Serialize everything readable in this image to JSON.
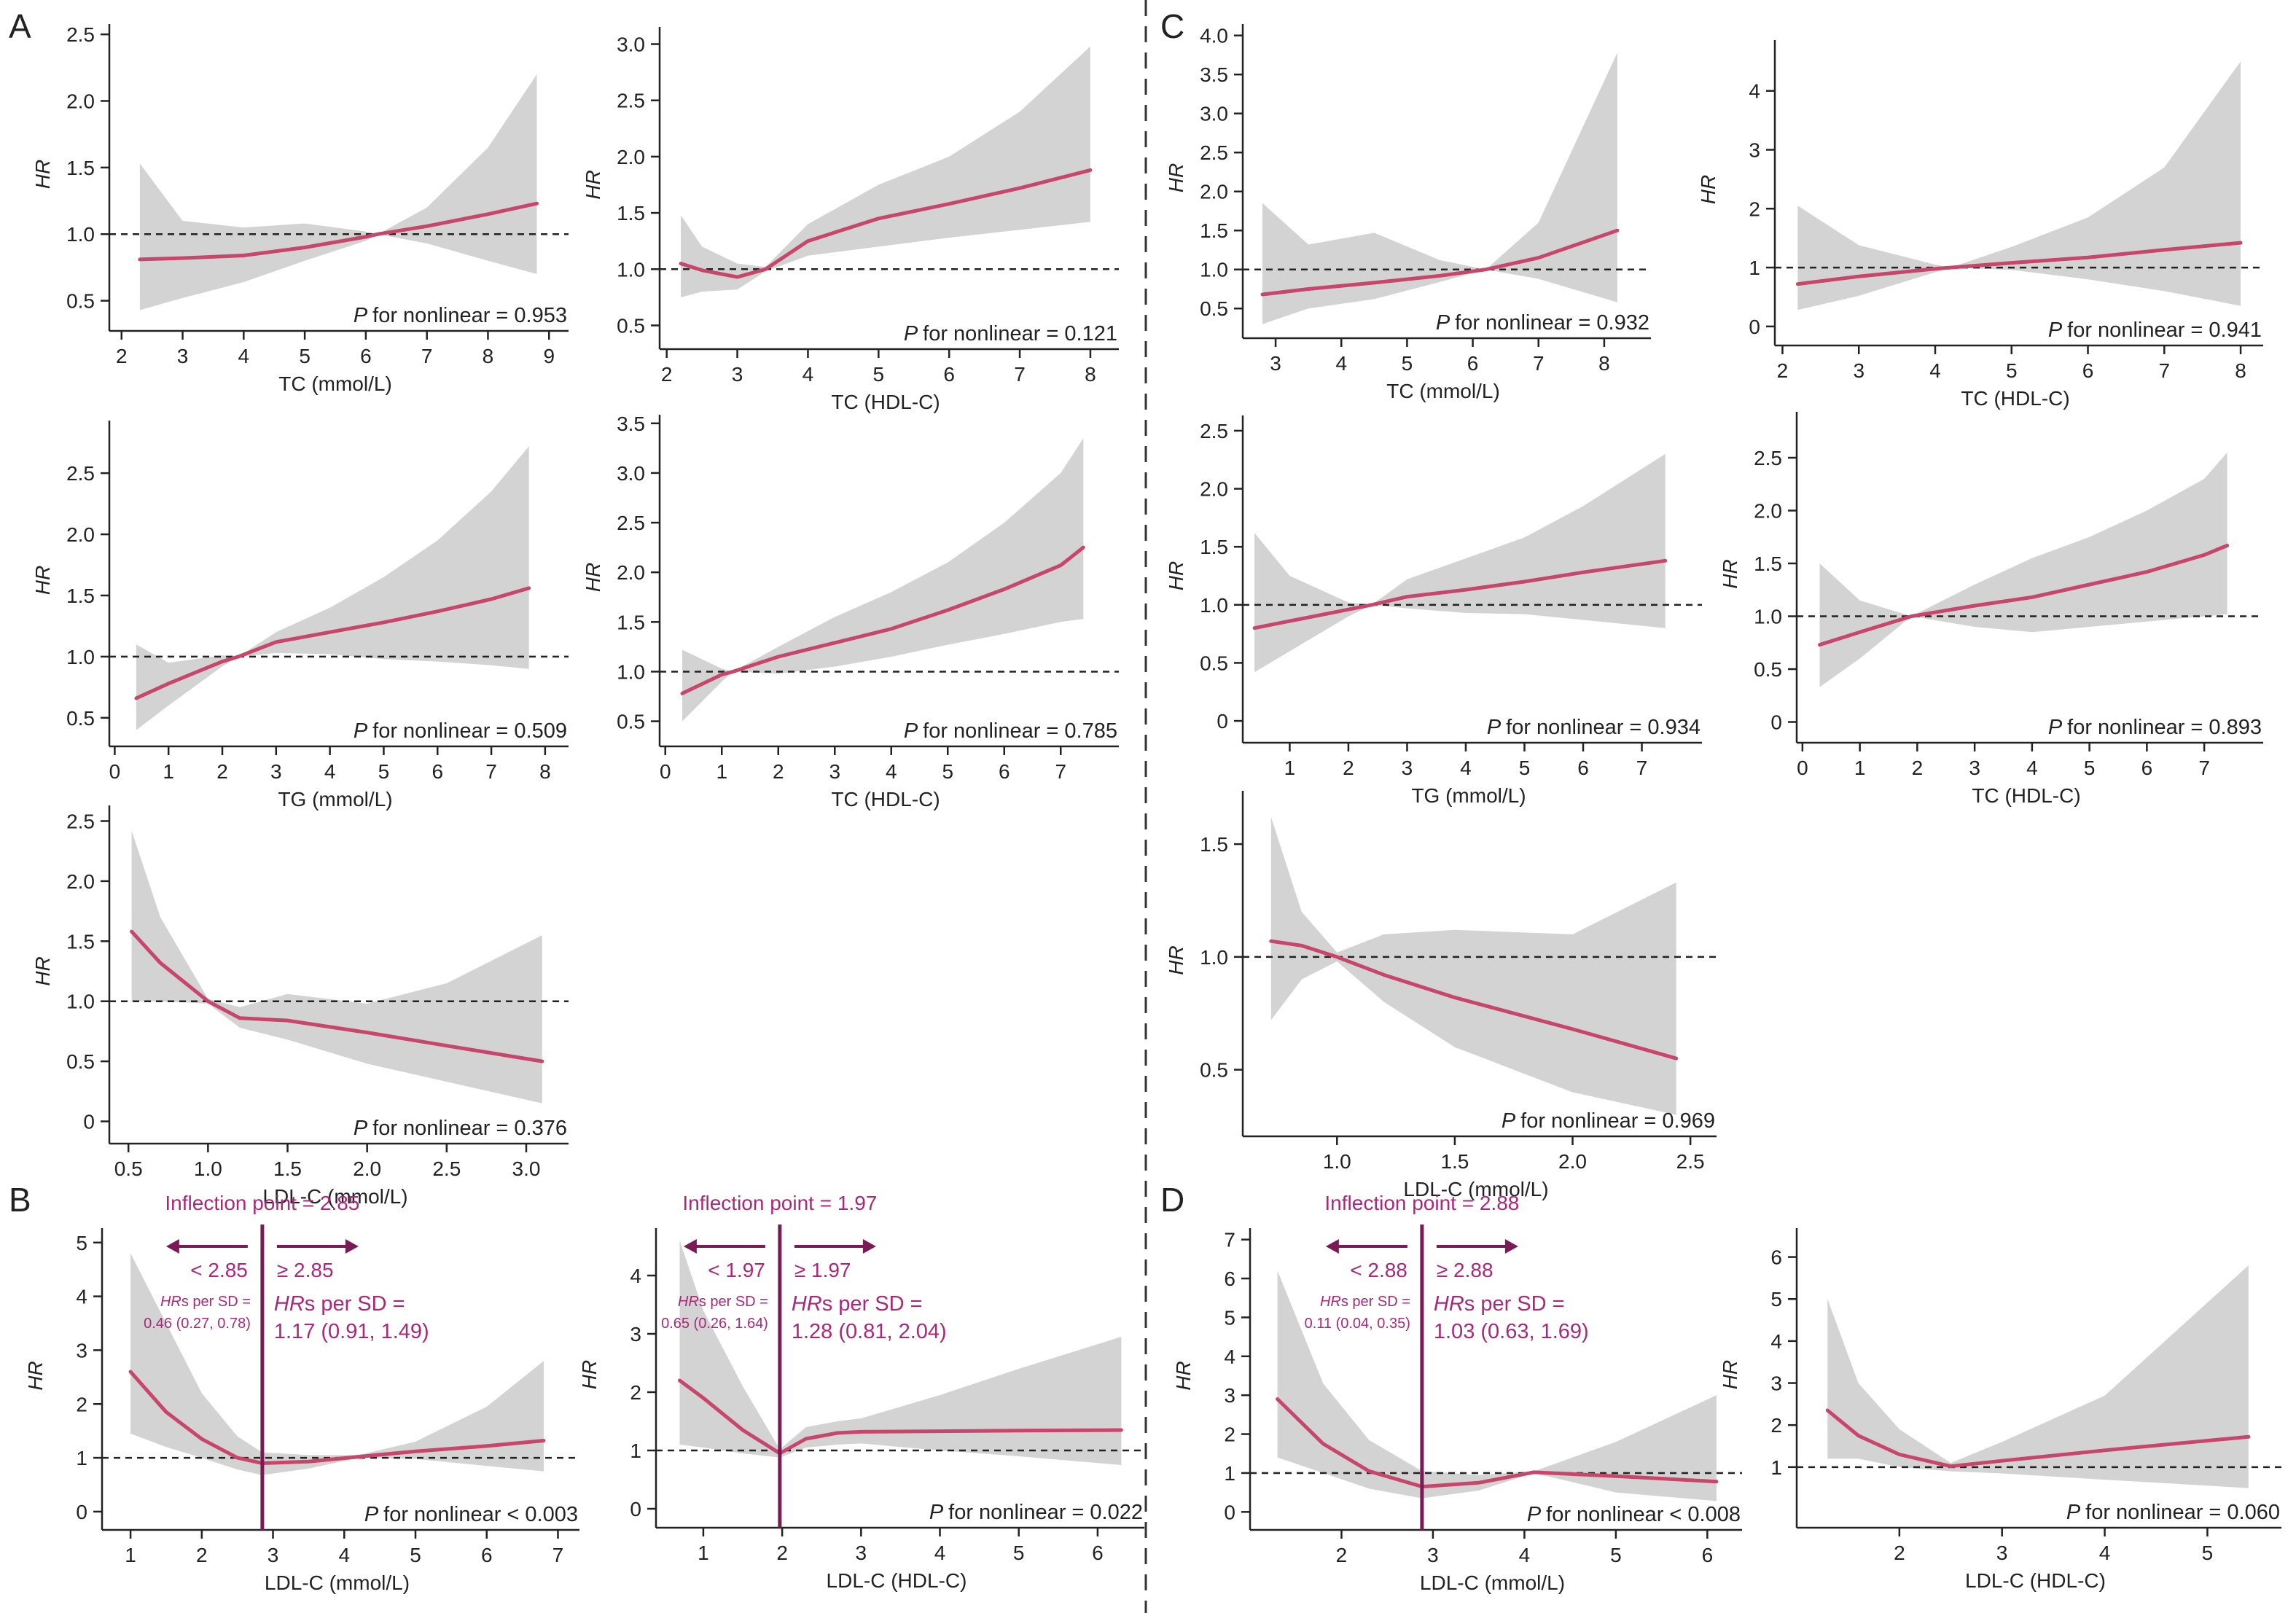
{
  "colors": {
    "line": "#c6476b",
    "band": "#d3d3d3",
    "ref": "#222222",
    "axis": "#222222",
    "accent": "#a8297a",
    "cut": "#7a1b55",
    "text": "#222222"
  },
  "labels": {
    "nonlinear": "for nonlinear",
    "p": "P",
    "hr": "HR"
  },
  "panel_letters": [
    {
      "key": "A",
      "text": "A"
    },
    {
      "key": "B",
      "text": "B"
    },
    {
      "key": "C",
      "text": "C"
    },
    {
      "key": "D",
      "text": "D"
    }
  ],
  "chart_data": [
    {
      "id": "A1",
      "type": "line",
      "xlabel": "TC (mmol/L)",
      "ylabel": "HR",
      "xlim": [
        1.8,
        9.2
      ],
      "ylim": [
        0.35,
        2.55
      ],
      "xticks": [
        2,
        3,
        4,
        5,
        6,
        7,
        8,
        9
      ],
      "yticks": [
        0.5,
        1.0,
        1.5,
        2.0,
        2.5
      ],
      "ytick_labels": [
        "0.5",
        "1.0",
        "1.5",
        "2.0",
        "2.5"
      ],
      "ref": 1.0,
      "p_text": "= 0.953",
      "x": [
        2.3,
        3,
        4,
        5,
        6,
        6.2,
        7,
        8,
        8.8
      ],
      "y": [
        0.81,
        0.82,
        0.84,
        0.9,
        0.98,
        1.0,
        1.06,
        1.15,
        1.23
      ],
      "lo": [
        0.43,
        0.52,
        0.64,
        0.8,
        0.95,
        1.0,
        0.93,
        0.8,
        0.7
      ],
      "hi": [
        1.53,
        1.1,
        1.05,
        1.08,
        1.02,
        1.0,
        1.2,
        1.65,
        2.2
      ]
    },
    {
      "id": "A2",
      "type": "line",
      "xlabel": "TC (HDL-C)",
      "ylabel": "HR",
      "xlim": [
        1.9,
        8.3
      ],
      "ylim": [
        0.38,
        3.12
      ],
      "xticks": [
        2,
        3,
        4,
        5,
        6,
        7,
        8
      ],
      "yticks": [
        0.5,
        1.0,
        1.5,
        2.0,
        2.5,
        3.0
      ],
      "ytick_labels": [
        "0.5",
        "1.0",
        "1.5",
        "2.0",
        "2.5",
        "3.0"
      ],
      "ref": 1.0,
      "p_text": "= 0.121",
      "x": [
        2.2,
        2.5,
        3,
        3.4,
        4,
        5,
        6,
        7,
        8
      ],
      "y": [
        1.05,
        0.99,
        0.93,
        1.0,
        1.25,
        1.45,
        1.58,
        1.72,
        1.88
      ],
      "lo": [
        0.75,
        0.8,
        0.82,
        0.98,
        1.12,
        1.2,
        1.28,
        1.35,
        1.42
      ],
      "hi": [
        1.48,
        1.2,
        1.05,
        1.02,
        1.4,
        1.75,
        2.0,
        2.4,
        2.98
      ]
    },
    {
      "id": "A3",
      "type": "line",
      "xlabel": "TG (mmol/L)",
      "ylabel": "HR",
      "xlim": [
        -0.1,
        8.3
      ],
      "ylim": [
        0.35,
        2.9
      ],
      "xticks": [
        0,
        1,
        2,
        3,
        4,
        5,
        6,
        7,
        8
      ],
      "yticks": [
        0.5,
        1.0,
        1.5,
        2.0,
        2.5
      ],
      "ytick_labels": [
        "0.5",
        "1.0",
        "1.5",
        "2.0",
        "2.5"
      ],
      "ref": 1.0,
      "p_text": "= 0.509",
      "x": [
        0.4,
        1,
        2,
        2.3,
        3,
        4,
        5,
        6,
        7,
        7.7
      ],
      "y": [
        0.66,
        0.78,
        0.96,
        1.0,
        1.12,
        1.2,
        1.28,
        1.37,
        1.47,
        1.56
      ],
      "lo": [
        0.4,
        0.6,
        0.92,
        1.0,
        1.03,
        1.02,
        0.98,
        0.96,
        0.93,
        0.9
      ],
      "hi": [
        1.1,
        0.95,
        1.01,
        1.0,
        1.2,
        1.4,
        1.65,
        1.95,
        2.35,
        2.72
      ]
    },
    {
      "id": "A4",
      "type": "line",
      "xlabel": "TC (HDL-C)",
      "ylabel": "HR",
      "xlim": [
        -0.1,
        7.9
      ],
      "ylim": [
        0.35,
        3.55
      ],
      "xticks": [
        0,
        1,
        2,
        3,
        4,
        5,
        6,
        7
      ],
      "yticks": [
        0.5,
        1.0,
        1.5,
        2.0,
        2.5,
        3.0,
        3.5
      ],
      "ytick_labels": [
        "0.5",
        "1.0",
        "1.5",
        "2.0",
        "2.5",
        "3.0",
        "3.5"
      ],
      "ref": 1.0,
      "p_text": "= 0.785",
      "x": [
        0.3,
        1,
        1.2,
        2,
        3,
        4,
        5,
        6,
        7,
        7.4
      ],
      "y": [
        0.78,
        0.97,
        1.0,
        1.15,
        1.29,
        1.43,
        1.62,
        1.83,
        2.07,
        2.25
      ],
      "lo": [
        0.5,
        0.9,
        1.0,
        0.98,
        1.05,
        1.15,
        1.27,
        1.38,
        1.5,
        1.53
      ],
      "hi": [
        1.22,
        1.03,
        1.0,
        1.25,
        1.55,
        1.8,
        2.1,
        2.5,
        3.0,
        3.35
      ]
    },
    {
      "id": "A5",
      "type": "line",
      "xlabel": "LDL-C (mmol/L)",
      "ylabel": "HR",
      "xlim": [
        0.38,
        3.22
      ],
      "ylim": [
        -0.1,
        2.6
      ],
      "xticks": [
        0.5,
        1.0,
        1.5,
        2.0,
        2.5,
        3.0
      ],
      "xtick_labels": [
        "0.5",
        "1.0",
        "1.5",
        "2.0",
        "2.5",
        "3.0"
      ],
      "yticks": [
        0,
        0.5,
        1.0,
        1.5,
        2.0,
        2.5
      ],
      "ytick_labels": [
        "0",
        "0.5",
        "1.0",
        "1.5",
        "2.0",
        "2.5"
      ],
      "ref": 1.0,
      "p_text": "= 0.376",
      "x": [
        0.52,
        0.7,
        1.0,
        1.2,
        1.5,
        2.0,
        2.5,
        3.1
      ],
      "y": [
        1.58,
        1.32,
        1.0,
        0.86,
        0.84,
        0.74,
        0.63,
        0.5
      ],
      "lo": [
        1.0,
        1.0,
        0.98,
        0.78,
        0.68,
        0.48,
        0.33,
        0.15
      ],
      "hi": [
        2.42,
        1.7,
        1.02,
        0.95,
        1.06,
        0.98,
        1.15,
        1.55
      ]
    },
    {
      "id": "C1",
      "type": "line",
      "xlabel": "TC (mmol/L)",
      "ylabel": "HR",
      "xlim": [
        2.5,
        8.6
      ],
      "ylim": [
        0.25,
        4.1
      ],
      "xticks": [
        3,
        4,
        5,
        6,
        7,
        8
      ],
      "yticks": [
        0.5,
        1.0,
        1.5,
        2.0,
        2.5,
        3.0,
        3.5,
        4.0
      ],
      "ytick_labels": [
        "0.5",
        "1.0",
        "1.5",
        "2.0",
        "2.5",
        "3.0",
        "3.5",
        "4.0"
      ],
      "ref": 1.0,
      "p_text": "= 0.932",
      "x": [
        2.8,
        3.5,
        4.5,
        5.5,
        6.2,
        7,
        8.2
      ],
      "y": [
        0.68,
        0.75,
        0.83,
        0.92,
        1.0,
        1.15,
        1.5
      ],
      "lo": [
        0.3,
        0.5,
        0.62,
        0.84,
        1.0,
        0.88,
        0.58
      ],
      "hi": [
        1.85,
        1.32,
        1.47,
        1.12,
        1.0,
        1.6,
        3.78
      ]
    },
    {
      "id": "C2",
      "type": "line",
      "xlabel": "TC (HDL-C)",
      "ylabel": "HR",
      "xlim": [
        1.9,
        8.2
      ],
      "ylim": [
        -0.15,
        4.8
      ],
      "xticks": [
        2,
        3,
        4,
        5,
        6,
        7,
        8
      ],
      "yticks": [
        0,
        1,
        2,
        3,
        4
      ],
      "ytick_labels": [
        "0",
        "1",
        "2",
        "3",
        "4"
      ],
      "ref": 1.0,
      "p_text": "= 0.941",
      "x": [
        2.2,
        3,
        4,
        4.2,
        5,
        6,
        7,
        8
      ],
      "y": [
        0.72,
        0.85,
        0.98,
        1.0,
        1.08,
        1.17,
        1.3,
        1.42
      ],
      "lo": [
        0.28,
        0.52,
        0.92,
        1.0,
        0.96,
        0.8,
        0.6,
        0.35
      ],
      "hi": [
        2.05,
        1.38,
        1.05,
        1.0,
        1.35,
        1.85,
        2.7,
        4.5
      ]
    },
    {
      "id": "C3",
      "type": "line",
      "xlabel": "TG (mmol/L)",
      "ylabel": "HR",
      "xlim": [
        0.2,
        7.9
      ],
      "ylim": [
        -0.1,
        2.6
      ],
      "xticks": [
        1,
        2,
        3,
        4,
        5,
        6,
        7
      ],
      "yticks": [
        0,
        0.5,
        1.0,
        1.5,
        2.0,
        2.5
      ],
      "ytick_labels": [
        "0",
        "0.5",
        "1.0",
        "1.5",
        "2.0",
        "2.5"
      ],
      "ref": 1.0,
      "p_text": "= 0.934",
      "x": [
        0.4,
        1,
        2,
        2.4,
        3,
        4,
        5,
        6,
        7.4
      ],
      "y": [
        0.8,
        0.86,
        0.96,
        1.0,
        1.07,
        1.13,
        1.2,
        1.28,
        1.38
      ],
      "lo": [
        0.42,
        0.6,
        0.9,
        1.0,
        0.97,
        0.93,
        0.92,
        0.87,
        0.8
      ],
      "hi": [
        1.62,
        1.25,
        1.02,
        1.0,
        1.22,
        1.4,
        1.58,
        1.85,
        2.3
      ]
    },
    {
      "id": "C4",
      "type": "line",
      "xlabel": "TC (HDL-C)",
      "ylabel": "HR",
      "xlim": [
        -0.1,
        7.9
      ],
      "ylim": [
        -0.1,
        2.9
      ],
      "xticks": [
        0,
        1,
        2,
        3,
        4,
        5,
        6,
        7
      ],
      "yticks": [
        0,
        0.5,
        1.0,
        1.5,
        2.0,
        2.5
      ],
      "ytick_labels": [
        "0",
        "0.5",
        "1.0",
        "1.5",
        "2.0",
        "2.5"
      ],
      "ref": 1.0,
      "p_text": "= 0.893",
      "x": [
        0.3,
        1,
        1.9,
        3,
        4,
        5,
        6,
        7,
        7.4
      ],
      "y": [
        0.73,
        0.85,
        1.0,
        1.1,
        1.18,
        1.3,
        1.42,
        1.58,
        1.67
      ],
      "lo": [
        0.33,
        0.6,
        1.0,
        0.9,
        0.85,
        0.9,
        0.95,
        1.0,
        1.02
      ],
      "hi": [
        1.5,
        1.15,
        1.0,
        1.3,
        1.55,
        1.75,
        2.0,
        2.3,
        2.55
      ]
    },
    {
      "id": "C5",
      "type": "line",
      "xlabel": "LDL-C (mmol/L)",
      "ylabel": "HR",
      "xlim": [
        0.6,
        2.58
      ],
      "ylim": [
        0.25,
        1.72
      ],
      "xticks": [
        1.0,
        1.5,
        2.0,
        2.5
      ],
      "xtick_labels": [
        "1.0",
        "1.5",
        "2.0",
        "2.5"
      ],
      "yticks": [
        0.5,
        1.0,
        1.5
      ],
      "ytick_labels": [
        "0.5",
        "1.0",
        "1.5"
      ],
      "ref": 1.0,
      "p_text": "= 0.969",
      "x": [
        0.72,
        0.85,
        1.0,
        1.2,
        1.5,
        2.0,
        2.44
      ],
      "y": [
        1.07,
        1.05,
        1.0,
        0.92,
        0.82,
        0.68,
        0.55
      ],
      "lo": [
        0.72,
        0.9,
        0.98,
        0.8,
        0.6,
        0.4,
        0.3
      ],
      "hi": [
        1.62,
        1.2,
        1.02,
        1.1,
        1.12,
        1.1,
        1.33
      ]
    },
    {
      "id": "B1",
      "type": "line",
      "xlabel": "LDL-C (mmol/L)",
      "ylabel": "HR",
      "xlim": [
        0.6,
        7.2
      ],
      "ylim": [
        -0.15,
        5.2
      ],
      "xticks": [
        1,
        2,
        3,
        4,
        5,
        6,
        7
      ],
      "yticks": [
        0,
        1,
        2,
        3,
        4,
        5
      ],
      "ytick_labels": [
        "0",
        "1",
        "2",
        "3",
        "4",
        "5"
      ],
      "ref": 1.0,
      "p_text": "< 0.003",
      "cut": 2.85,
      "inflection": "Inflection point = 2.85",
      "lt": "< 2.85",
      "ge": "≥ 2.85",
      "hr_left": "s per SD =",
      "hr_left_val": "0.46 (0.27, 0.78)",
      "hr_right": "s per SD =",
      "hr_right_val": "1.17 (0.91, 1.49)",
      "x": [
        1.0,
        1.5,
        2.0,
        2.5,
        2.85,
        3.5,
        4.2,
        5,
        6,
        6.8
      ],
      "y": [
        2.6,
        1.85,
        1.35,
        1.0,
        0.9,
        0.93,
        1.02,
        1.12,
        1.22,
        1.32
      ],
      "lo": [
        1.45,
        1.2,
        1.0,
        0.78,
        0.68,
        0.8,
        1.0,
        0.98,
        0.85,
        0.75
      ],
      "hi": [
        4.8,
        3.5,
        2.2,
        1.4,
        1.1,
        1.05,
        1.05,
        1.3,
        1.95,
        2.8
      ]
    },
    {
      "id": "B2",
      "type": "line",
      "xlabel": "LDL-C (HDL-C)",
      "ylabel": "HR",
      "xlim": [
        0.4,
        6.5
      ],
      "ylim": [
        -0.15,
        4.75
      ],
      "xticks": [
        1,
        2,
        3,
        4,
        5,
        6
      ],
      "yticks": [
        0,
        1,
        2,
        3,
        4
      ],
      "ytick_labels": [
        "0",
        "1",
        "2",
        "3",
        "4"
      ],
      "ref": 1.0,
      "p_text": "= 0.022",
      "cut": 1.97,
      "inflection": "Inflection point = 1.97",
      "lt": "< 1.97",
      "ge": "≥ 1.97",
      "hr_left": "s per SD =",
      "hr_left_val": "0.65 (0.26, 1.64)",
      "hr_right": "s per SD =",
      "hr_right_val": "1.28 (0.81, 2.04)",
      "x": [
        0.7,
        1.0,
        1.5,
        1.97,
        2.3,
        2.7,
        3.0,
        4,
        5,
        6.3
      ],
      "y": [
        2.2,
        1.9,
        1.35,
        0.95,
        1.2,
        1.3,
        1.32,
        1.33,
        1.34,
        1.35
      ],
      "lo": [
        1.1,
        1.05,
        0.95,
        0.88,
        1.05,
        1.1,
        1.12,
        1.0,
        0.9,
        0.75
      ],
      "hi": [
        4.6,
        3.4,
        2.1,
        1.02,
        1.4,
        1.5,
        1.55,
        1.95,
        2.4,
        2.95
      ]
    },
    {
      "id": "D1",
      "type": "line",
      "xlabel": "LDL-C (mmol/L)",
      "ylabel": "HR",
      "xlim": [
        1.0,
        6.3
      ],
      "ylim": [
        -0.2,
        7.2
      ],
      "xticks": [
        2,
        3,
        4,
        5,
        6
      ],
      "yticks": [
        0,
        1,
        2,
        3,
        4,
        5,
        6,
        7
      ],
      "ytick_labels": [
        "0",
        "1",
        "2",
        "3",
        "4",
        "5",
        "6",
        "7"
      ],
      "ref": 1.0,
      "p_text": "< 0.008",
      "cut": 2.88,
      "inflection": "Inflection point = 2.88",
      "lt": "< 2.88",
      "ge": "≥ 2.88",
      "hr_left": "s per SD =",
      "hr_left_val": "0.11 (0.04, 0.35)",
      "hr_right": "s per SD =",
      "hr_right_val": "1.03 (0.63, 1.69)",
      "x": [
        1.3,
        1.8,
        2.3,
        2.88,
        3.5,
        4.1,
        5,
        6.1
      ],
      "y": [
        2.9,
        1.75,
        1.05,
        0.65,
        0.75,
        1.02,
        0.92,
        0.78
      ],
      "lo": [
        1.4,
        1.0,
        0.6,
        0.35,
        0.55,
        1.0,
        0.5,
        0.28
      ],
      "hi": [
        6.2,
        3.3,
        1.85,
        1.05,
        0.95,
        1.04,
        1.8,
        3.0
      ]
    },
    {
      "id": "D2",
      "type": "line",
      "xlabel": "LDL-C (HDL-C)",
      "ylabel": "HR",
      "xlim": [
        1.0,
        5.65
      ],
      "ylim": [
        -0.2,
        6.6
      ],
      "xticks": [
        2,
        3,
        4,
        5
      ],
      "yticks": [
        1,
        2,
        3,
        4,
        5,
        6
      ],
      "ytick_labels": [
        "1",
        "2",
        "3",
        "4",
        "5",
        "6"
      ],
      "ref": 1.0,
      "p_text": "= 0.060",
      "x": [
        1.3,
        1.6,
        2.0,
        2.5,
        3.0,
        4.0,
        5.4
      ],
      "y": [
        2.35,
        1.75,
        1.3,
        1.02,
        1.15,
        1.4,
        1.72
      ],
      "lo": [
        1.2,
        1.2,
        1.0,
        0.9,
        0.85,
        0.7,
        0.5
      ],
      "hi": [
        5.0,
        3.0,
        1.9,
        1.1,
        1.6,
        2.7,
        5.8
      ]
    }
  ]
}
